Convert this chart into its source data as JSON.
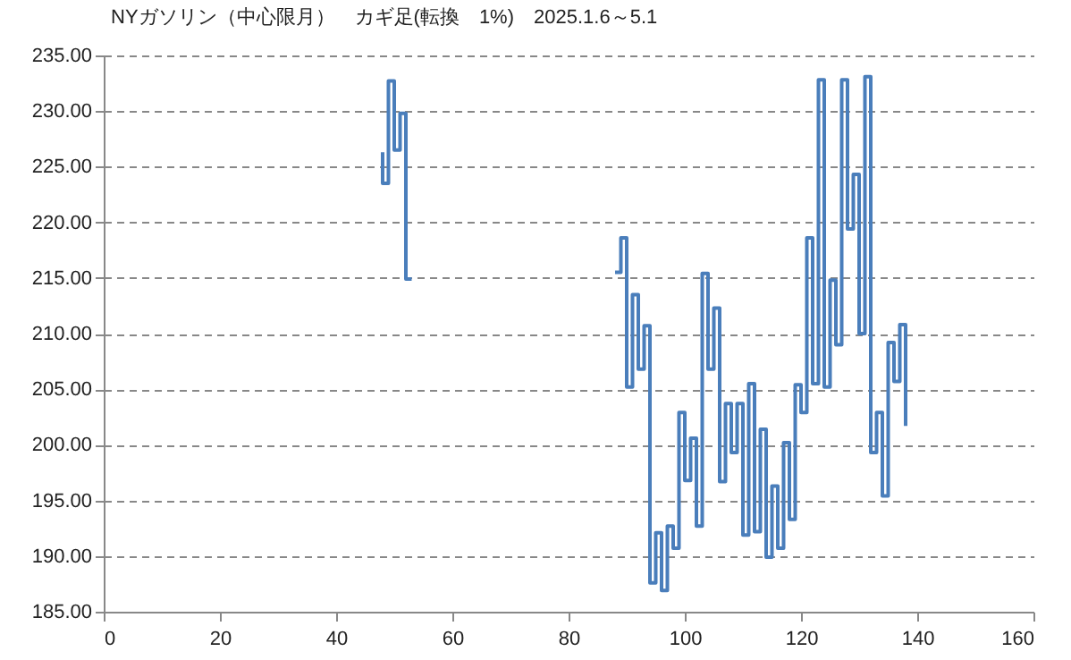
{
  "chart_data": {
    "type": "line",
    "title": "NYガソリン（中心限月）　カギ足(転換　1%)　2025.1.6～5.1",
    "x": [
      88,
      89,
      89,
      90,
      90,
      91,
      91,
      92,
      92,
      93,
      93,
      94,
      94,
      95,
      95,
      96,
      96,
      97,
      97,
      98,
      98,
      99,
      99,
      100,
      100,
      101,
      101,
      102,
      102,
      103,
      103,
      104,
      104,
      105,
      105,
      106,
      106,
      107,
      107,
      108,
      108,
      109,
      109,
      110,
      110,
      111,
      111,
      112,
      112,
      113,
      113,
      114,
      114,
      115,
      115,
      116,
      116,
      117,
      117,
      118,
      118,
      119,
      119,
      120,
      120,
      121,
      121,
      122,
      122,
      123,
      123,
      124,
      124,
      125,
      125,
      126,
      126,
      127,
      127,
      128,
      128,
      129,
      129,
      130,
      130,
      131,
      131,
      132,
      132,
      133,
      133,
      134,
      134,
      135,
      135,
      136,
      136,
      137,
      137,
      138,
      138
    ],
    "series": [
      {
        "color": "#4a7ebb",
        "x": [
          48,
          48,
          49,
          49,
          50,
          50,
          51,
          51,
          52,
          52,
          53
        ],
        "values": [
          226.3,
          223.5,
          223.5,
          232.7,
          232.7,
          226.5,
          226.5,
          229.8,
          229.8,
          214.9,
          214.9
        ]
      },
      {
        "color": "#4a7ebb",
        "values": [
          215.5,
          215.5,
          218.6,
          218.6,
          205.2,
          205.2,
          213.5,
          213.5,
          206.8,
          206.8,
          210.7,
          210.7,
          187.6,
          187.6,
          192.1,
          192.1,
          186.9,
          186.9,
          192.7,
          192.7,
          190.7,
          190.7,
          202.9,
          202.9,
          196.8,
          196.8,
          200.6,
          200.6,
          192.7,
          192.7,
          215.4,
          215.4,
          206.8,
          206.8,
          212.3,
          212.3,
          196.7,
          196.7,
          203.7,
          203.7,
          199.3,
          199.3,
          203.7,
          203.7,
          191.9,
          191.9,
          205.5,
          205.5,
          192.2,
          192.2,
          201.4,
          201.4,
          189.9,
          189.9,
          196.3,
          196.3,
          190.7,
          190.7,
          200.2,
          200.2,
          193.3,
          193.3,
          205.4,
          205.4,
          202.9,
          202.9,
          218.6,
          218.6,
          205.5,
          205.5,
          232.8,
          232.8,
          205.2,
          205.2,
          214.8,
          214.8,
          209.0,
          209.0,
          232.8,
          232.8,
          219.4,
          219.4,
          224.3,
          224.3,
          210.0,
          210.0,
          233.1,
          233.1,
          199.3,
          199.3,
          202.9,
          202.9,
          195.4,
          195.4,
          209.2,
          209.2,
          205.7,
          205.7,
          210.8,
          210.8,
          201.7
        ]
      }
    ],
    "xlim": [
      0,
      160
    ],
    "xticks": [
      0,
      20,
      40,
      60,
      80,
      100,
      120,
      140,
      160
    ],
    "ylim": [
      185,
      235
    ],
    "yticks": [
      {
        "value": 185,
        "label": "185.00"
      },
      {
        "value": 190,
        "label": "190.00"
      },
      {
        "value": 195,
        "label": "195.00"
      },
      {
        "value": 200,
        "label": "200.00"
      },
      {
        "value": 205,
        "label": "205.00"
      },
      {
        "value": 210,
        "label": "210.00"
      },
      {
        "value": 215,
        "label": "215.00"
      },
      {
        "value": 220,
        "label": "220.00"
      },
      {
        "value": 225,
        "label": "225.00"
      },
      {
        "value": 230,
        "label": "230.00"
      },
      {
        "value": 235,
        "label": "235.00"
      }
    ],
    "grid": "y",
    "marker": "none",
    "line_style": "solid"
  }
}
